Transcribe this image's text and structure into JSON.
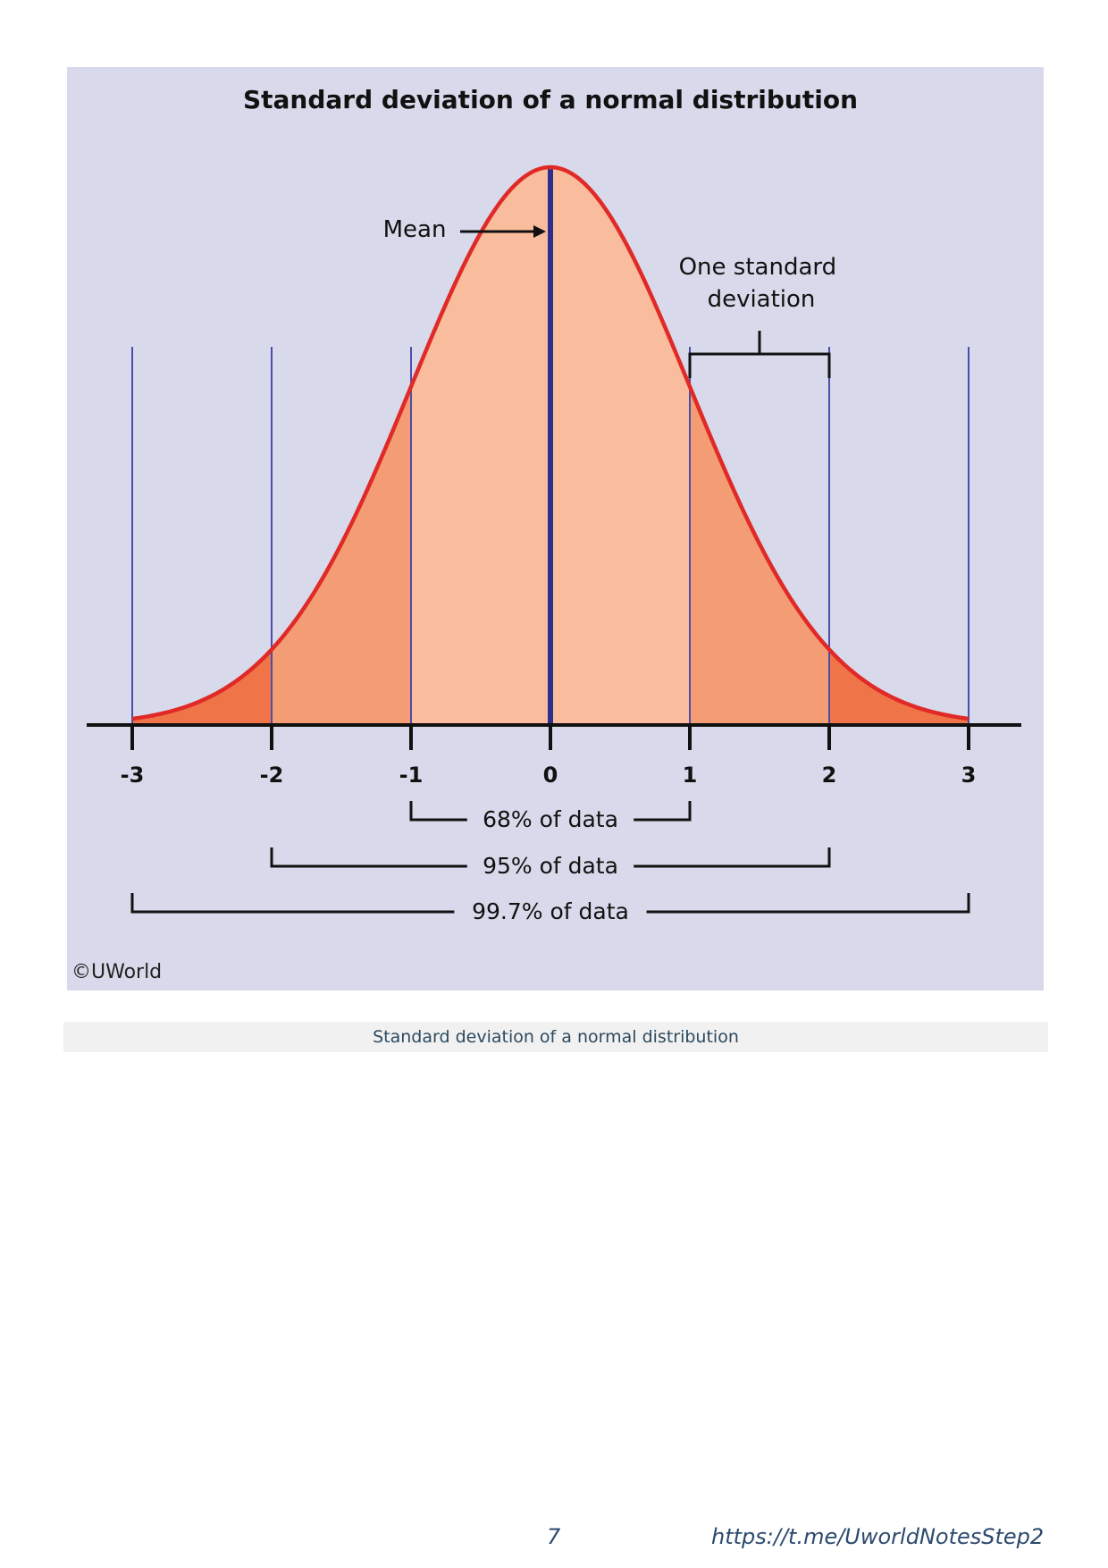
{
  "chart_data": {
    "type": "area",
    "title": "Standard deviation of a normal distribution",
    "curve": "normal",
    "mean": 0,
    "sd": 1,
    "x_ticks": [
      -3,
      -2,
      -1,
      0,
      1,
      2,
      3
    ],
    "x_tick_labels": [
      "-3",
      "-2",
      "-1",
      "0",
      "1",
      "2",
      "3"
    ],
    "xlim": [
      -3,
      3
    ],
    "reference_lines_at": [
      -3,
      -2,
      -1,
      1,
      2,
      3
    ],
    "mean_label": "Mean",
    "sd_annotation": "One standard deviation",
    "sd_annotation_lines": [
      "One standard",
      "deviation"
    ],
    "bands": [
      {
        "from": -1,
        "to": 1,
        "label": "68% of data",
        "fill": "#f9bc9c"
      },
      {
        "from": -2,
        "to": 2,
        "label": "95% of data",
        "fill": "#f49d74"
      },
      {
        "from": -3,
        "to": 3,
        "label": "99.7% of data",
        "fill": "#ef7448"
      }
    ],
    "copyright": "©UWorld",
    "colors": {
      "background": "#d8d9ea",
      "curve": "#e02a27",
      "mean_line": "#2d2f8f",
      "reference_line": "#4a4ea8",
      "axis": "#111111"
    }
  },
  "caption": "Standard deviation of a normal distribution",
  "footer": {
    "page_number": "7",
    "link": "https://t.me/UworldNotesStep2"
  }
}
